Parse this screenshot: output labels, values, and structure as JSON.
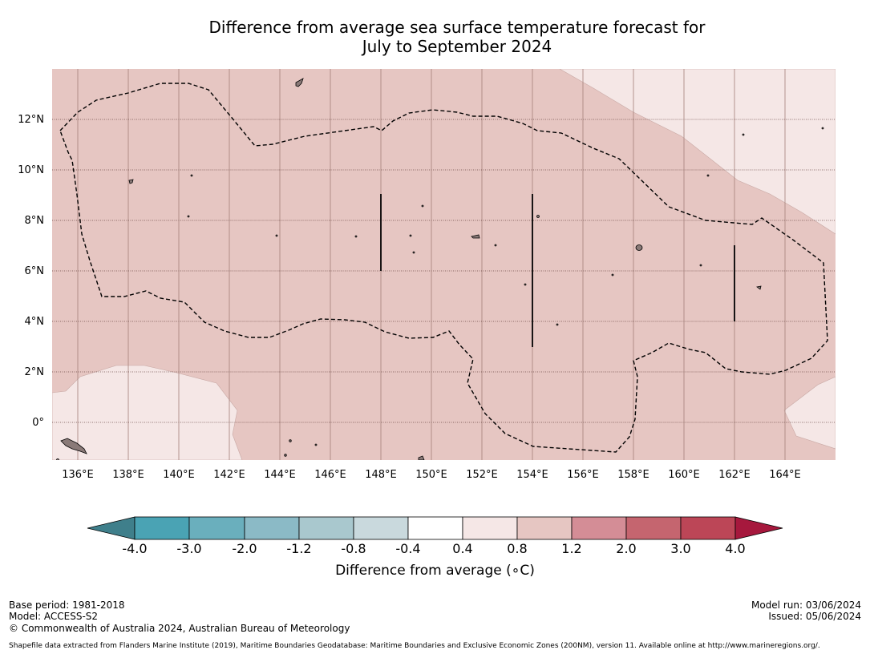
{
  "title": {
    "line1": "Difference from average sea surface temperature forecast for",
    "line2": "July to September 2024"
  },
  "map": {
    "lon_ticks": [
      "136°E",
      "138°E",
      "140°E",
      "142°E",
      "144°E",
      "146°E",
      "148°E",
      "150°E",
      "152°E",
      "154°E",
      "156°E",
      "158°E",
      "160°E",
      "162°E",
      "164°E"
    ],
    "lat_ticks": [
      "12°N",
      "10°N",
      "8°N",
      "6°N",
      "4°N",
      "2°N",
      "0°"
    ],
    "lon_range": [
      135,
      166
    ],
    "lat_range": [
      -1.5,
      14
    ],
    "regions": [
      {
        "name": "background-anomaly",
        "range": "0.8 to 1.2",
        "color": "#e6c6c2"
      },
      {
        "name": "cool-southwest",
        "range": "0.4 to 0.8",
        "color": "#f5e7e6"
      },
      {
        "name": "cool-northeast",
        "range": "0.4 to 0.8",
        "color": "#f5e7e6"
      },
      {
        "name": "cool-southeast",
        "range": "0.4 to 0.8",
        "color": "#f5e7e6"
      }
    ],
    "boundary_style": "dashed"
  },
  "colorbar": {
    "labels": [
      "-4.0",
      "-3.0",
      "-2.0",
      "-1.2",
      "-0.8",
      "-0.4",
      "0.4",
      "0.8",
      "1.2",
      "2.0",
      "3.0",
      "4.0"
    ],
    "colors": [
      "#3f7f8b",
      "#4aa3b4",
      "#6aafbd",
      "#8bbac6",
      "#a9c8ce",
      "#c9d9dd",
      "#ffffff",
      "#f5e7e6",
      "#e6c6c2",
      "#d48d96",
      "#c5656f",
      "#bc4657",
      "#a6183d"
    ],
    "title": "Difference from average (∘C)"
  },
  "footer": {
    "base_period": "Base period: 1981-2018",
    "model": "Model: ACCESS-S2",
    "copyright": "© Commonwealth of Australia 2024, Australian Bureau of Meteorology",
    "model_run": "Model run: 03/06/2024",
    "issued": "Issued: 05/06/2024",
    "shapefile": "Shapefile data extracted from Flanders Marine Institute (2019), Maritime Boundaries Geodatabase: Maritime Boundaries and Exclusive Economic Zones (200NM), version 11. Available online at http://www.marineregions.org/."
  }
}
